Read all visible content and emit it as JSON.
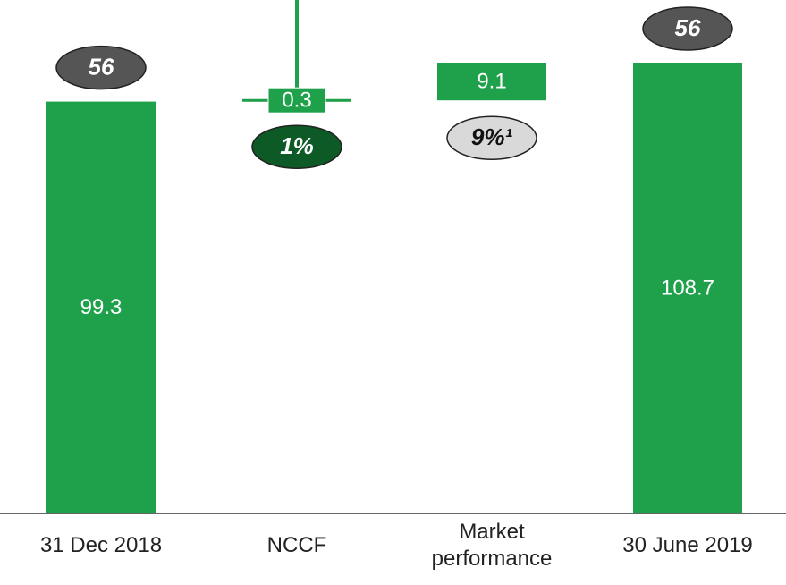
{
  "chart_data": {
    "type": "waterfall",
    "categories": [
      "31 Dec 2018",
      "NCCF",
      "Market performance",
      "30 June 2019"
    ],
    "values": [
      99.3,
      0.3,
      9.1,
      108.7
    ],
    "kinds": [
      "total",
      "delta",
      "delta",
      "total"
    ],
    "color": "#1fa04a",
    "annotations": [
      "56",
      "1%",
      "9%¹",
      "56"
    ],
    "annotation_colors": [
      "#555555",
      "#0d5a26",
      "#d9d9d9",
      "#555555"
    ]
  }
}
